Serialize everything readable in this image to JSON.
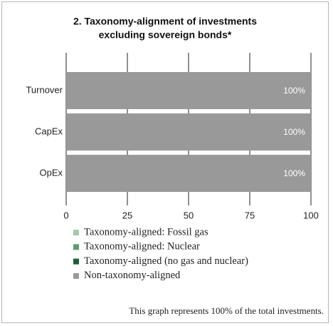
{
  "chart_data": {
    "type": "stacked_barh",
    "title": [
      "2. Taxonomy-alignment of investments",
      "excluding sovereign bonds*"
    ],
    "categories": [
      "Turnover",
      "CapEx",
      "OpEx"
    ],
    "series": [
      {
        "name": "Taxonomy-aligned: Fossil gas",
        "color": "#a6c8a9",
        "values": [
          0,
          0,
          0
        ]
      },
      {
        "name": "Taxonomy-aligned: Nuclear",
        "color": "#5f9b6d",
        "values": [
          0,
          0,
          0
        ]
      },
      {
        "name": "Taxonomy-aligned (no gas and nuclear)",
        "color": "#1b5e35",
        "values": [
          0,
          0,
          0
        ]
      },
      {
        "name": "Non-taxonomy-aligned",
        "color": "#999999",
        "values": [
          100,
          100,
          100
        ],
        "value_labels": [
          "100%",
          "100%",
          "100%"
        ]
      }
    ],
    "xlim": [
      0,
      100
    ],
    "xticks": [
      0,
      25,
      50,
      75,
      100
    ],
    "grid": true,
    "note": "This graph represents 100% of the total investments."
  }
}
